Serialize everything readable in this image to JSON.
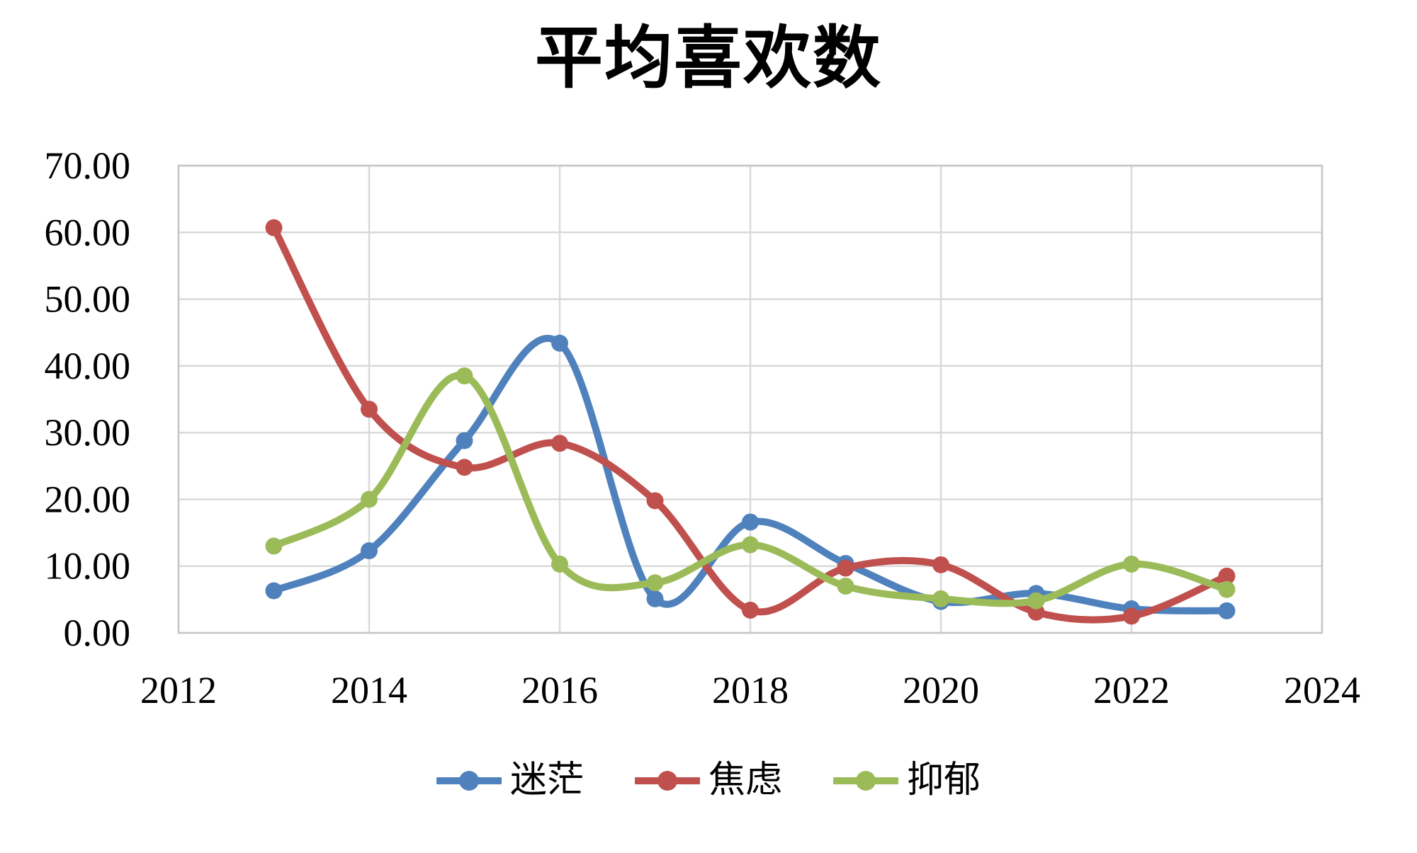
{
  "chart_data": {
    "type": "line",
    "title": "平均喜欢数",
    "smooth": true,
    "grid": true,
    "legend_position": "bottom",
    "x": [
      2013,
      2014,
      2015,
      2016,
      2017,
      2018,
      2019,
      2020,
      2021,
      2022,
      2023
    ],
    "xlim": [
      2012,
      2024
    ],
    "ylim": [
      0,
      70
    ],
    "x_tick_labels": [
      "2012",
      "2014",
      "2016",
      "2018",
      "2020",
      "2022",
      "2024"
    ],
    "y_tick_labels": [
      "0.00",
      "10.00",
      "20.00",
      "30.00",
      "40.00",
      "50.00",
      "60.00",
      "70.00"
    ],
    "series": [
      {
        "name": "迷茫",
        "color": "#4F81BD",
        "values": [
          6.3,
          12.3,
          28.8,
          43.4,
          5.1,
          16.6,
          10.4,
          4.7,
          5.9,
          3.6,
          3.3
        ]
      },
      {
        "name": "焦虑",
        "color": "#C0504D",
        "values": [
          60.7,
          33.5,
          24.8,
          28.4,
          19.8,
          3.4,
          9.7,
          10.2,
          3.1,
          2.5,
          8.5
        ]
      },
      {
        "name": "抑郁",
        "color": "#9BBB59",
        "values": [
          13.0,
          20.0,
          38.5,
          10.3,
          7.5,
          13.2,
          7.0,
          5.1,
          4.8,
          10.3,
          6.5
        ]
      }
    ],
    "colors": {
      "grid": "#D9D9D9",
      "border": "#C6C6C6",
      "text": "#000000",
      "background": "#FFFFFF"
    }
  }
}
